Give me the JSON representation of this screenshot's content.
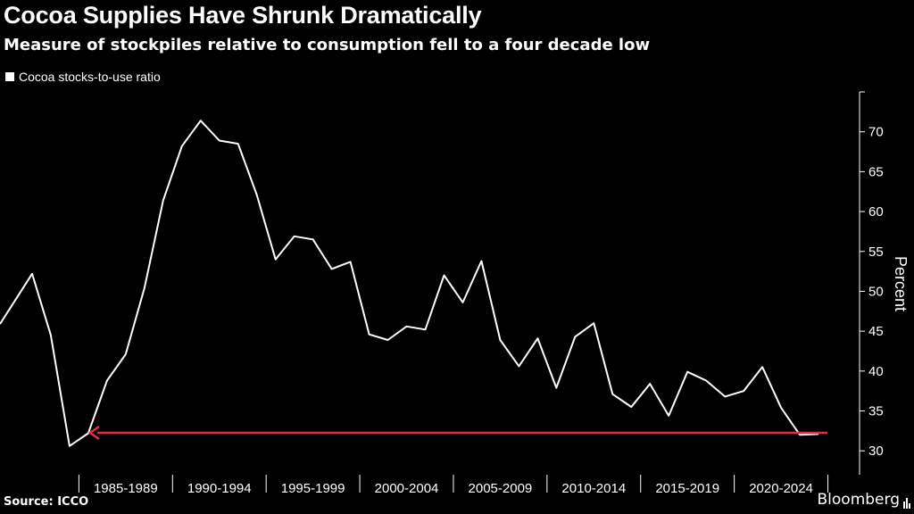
{
  "title": "Cocoa Supplies Have Shrunk Dramatically",
  "subtitle": "Measure of stockpiles relative to consumption fell to a four decade low",
  "source": "Source: ICCO",
  "brand": "Bloomberg",
  "colors": {
    "background": "#000000",
    "line": "#ffffff",
    "annotation": "#e8294a",
    "tick": "#ffffff"
  },
  "chart_data": {
    "type": "line",
    "title": "Cocoa Supplies Have Shrunk Dramatically",
    "subtitle": "Measure of stockpiles relative to consumption fell to a four decade low",
    "xlabel": "",
    "ylabel": "Percent",
    "ylim": [
      27,
      75
    ],
    "yticks": [
      30,
      35,
      40,
      45,
      50,
      55,
      60,
      65,
      70
    ],
    "xlim": [
      1980,
      2026
    ],
    "xticks": [
      {
        "label": "1985-1989"
      },
      {
        "label": "1990-1994"
      },
      {
        "label": "1995-1999"
      },
      {
        "label": "2000-2004"
      },
      {
        "label": "2005-2009"
      },
      {
        "label": "2010-2014"
      },
      {
        "label": "2015-2019"
      },
      {
        "label": "2020-2024"
      }
    ],
    "legend": {
      "position": "top-left",
      "entries": [
        "Cocoa stocks-to-use ratio"
      ]
    },
    "grid": false,
    "series": [
      {
        "name": "Cocoa stocks-to-use ratio",
        "x": [
          1981,
          1982,
          1983,
          1984,
          1985,
          1986,
          1987,
          1988,
          1989,
          1990,
          1991,
          1992,
          1993,
          1994,
          1995,
          1996,
          1997,
          1998,
          1999,
          2000,
          2001,
          2002,
          2003,
          2004,
          2005,
          2006,
          2007,
          2008,
          2009,
          2010,
          2011,
          2012,
          2013,
          2014,
          2015,
          2016,
          2017,
          2018,
          2019,
          2020,
          2021,
          2022,
          2023,
          2024
        ],
        "values": [
          45.9,
          52.2,
          44.5,
          30.6,
          32.2,
          38.8,
          42.1,
          50.4,
          61.4,
          68.2,
          71.4,
          68.9,
          68.5,
          62.1,
          54.0,
          56.9,
          56.5,
          52.8,
          53.7,
          44.6,
          43.9,
          45.6,
          45.2,
          52.0,
          48.6,
          53.8,
          43.9,
          40.6,
          44.1,
          37.9,
          44.3,
          46.0,
          37.1,
          35.5,
          38.4,
          34.4,
          39.9,
          38.8,
          36.8,
          37.5,
          40.5,
          35.4,
          32.0,
          32.1
        ]
      }
    ],
    "annotations": [
      {
        "type": "arrow",
        "from_x": 2024,
        "to_x": 1985,
        "y": 32.2
      }
    ]
  }
}
